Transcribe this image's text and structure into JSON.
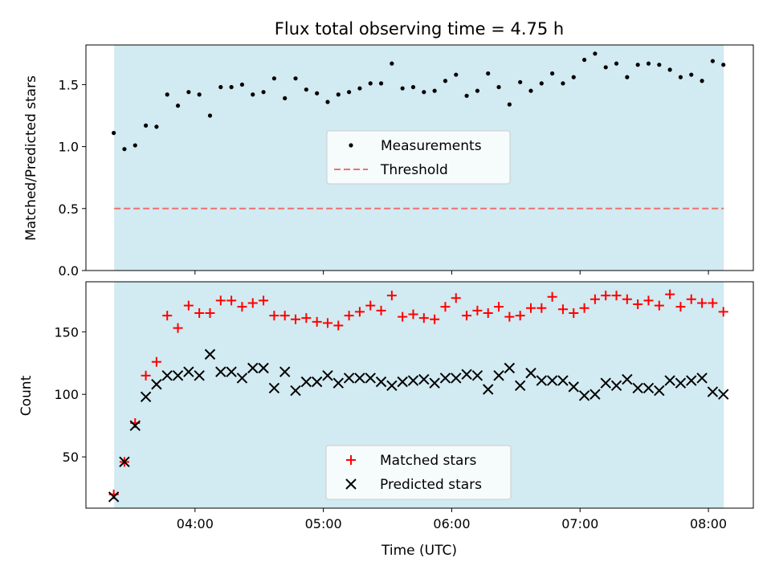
{
  "chart_data": [
    {
      "type": "scatter",
      "title": "Flux total observing time = 4.75 h",
      "ylabel": "Matched/Predicted stars",
      "xlabel": "",
      "ylim": [
        0,
        1.82
      ],
      "yticks": [
        "0.0",
        "0.5",
        "1.0",
        "1.5"
      ],
      "ytick_values": [
        0.0,
        0.5,
        1.0,
        1.5
      ],
      "xlim_hours": [
        3.15,
        8.35
      ],
      "shaded_range_hours": [
        3.37,
        8.12
      ],
      "legend": {
        "placement": "center",
        "entries": [
          "Measurements",
          "Threshold"
        ]
      },
      "threshold": {
        "name": "Threshold",
        "value": 0.5,
        "color": "#f07070",
        "style": "dashed"
      },
      "series": [
        {
          "name": "Measurements",
          "color": "#000000",
          "marker": "dot",
          "x": [
            "03:22",
            "03:27",
            "03:32",
            "03:37",
            "03:42",
            "03:47",
            "03:52",
            "03:57",
            "04:02",
            "04:07",
            "04:12",
            "04:17",
            "04:22",
            "04:27",
            "04:32",
            "04:37",
            "04:42",
            "04:47",
            "04:52",
            "04:57",
            "05:02",
            "05:07",
            "05:12",
            "05:17",
            "05:22",
            "05:27",
            "05:32",
            "05:37",
            "05:42",
            "05:47",
            "05:52",
            "05:57",
            "06:02",
            "06:07",
            "06:12",
            "06:17",
            "06:22",
            "06:27",
            "06:32",
            "06:37",
            "06:42",
            "06:47",
            "06:52",
            "06:57",
            "07:02",
            "07:07",
            "07:12",
            "07:17",
            "07:22",
            "07:27",
            "07:32",
            "07:37",
            "07:42",
            "07:47",
            "07:52",
            "07:57",
            "08:02",
            "08:07"
          ],
          "y": [
            1.11,
            0.98,
            1.01,
            1.17,
            1.16,
            1.42,
            1.33,
            1.44,
            1.42,
            1.25,
            1.48,
            1.48,
            1.5,
            1.42,
            1.44,
            1.55,
            1.39,
            1.55,
            1.46,
            1.43,
            1.36,
            1.42,
            1.44,
            1.47,
            1.51,
            1.51,
            1.67,
            1.47,
            1.48,
            1.44,
            1.45,
            1.53,
            1.58,
            1.41,
            1.45,
            1.59,
            1.48,
            1.34,
            1.52,
            1.45,
            1.51,
            1.59,
            1.51,
            1.56,
            1.7,
            1.75,
            1.64,
            1.67,
            1.56,
            1.66,
            1.67,
            1.66,
            1.62,
            1.56,
            1.58,
            1.53,
            1.69,
            1.66
          ]
        }
      ]
    },
    {
      "type": "scatter",
      "title": "",
      "ylabel": "Count",
      "xlabel": "Time (UTC)",
      "ylim": [
        9,
        190
      ],
      "yticks": [
        "50",
        "100",
        "150"
      ],
      "ytick_values": [
        50,
        100,
        150
      ],
      "xticks": [
        "04:00",
        "05:00",
        "06:00",
        "07:00",
        "08:00"
      ],
      "xtick_values_hours": [
        4,
        5,
        6,
        7,
        8
      ],
      "xlim_hours": [
        3.15,
        8.35
      ],
      "shaded_range_hours": [
        3.37,
        8.12
      ],
      "legend": {
        "placement": "lower center",
        "entries": [
          "Matched stars",
          "Predicted stars"
        ]
      },
      "series": [
        {
          "name": "Matched stars",
          "color": "#ff0000",
          "marker": "plus",
          "x": [
            "03:22",
            "03:27",
            "03:32",
            "03:37",
            "03:42",
            "03:47",
            "03:52",
            "03:57",
            "04:02",
            "04:07",
            "04:12",
            "04:17",
            "04:22",
            "04:27",
            "04:32",
            "04:37",
            "04:42",
            "04:47",
            "04:52",
            "04:57",
            "05:02",
            "05:07",
            "05:12",
            "05:17",
            "05:22",
            "05:27",
            "05:32",
            "05:37",
            "05:42",
            "05:47",
            "05:52",
            "05:57",
            "06:02",
            "06:07",
            "06:12",
            "06:17",
            "06:22",
            "06:27",
            "06:32",
            "06:37",
            "06:42",
            "06:47",
            "06:52",
            "06:57",
            "07:02",
            "07:07",
            "07:12",
            "07:17",
            "07:22",
            "07:27",
            "07:32",
            "07:37",
            "07:42",
            "07:47",
            "07:52",
            "07:57",
            "08:02",
            "08:07"
          ],
          "y": [
            20,
            46,
            77,
            115,
            126,
            163,
            153,
            171,
            165,
            165,
            175,
            175,
            170,
            173,
            175,
            163,
            163,
            160,
            161,
            158,
            157,
            155,
            163,
            166,
            171,
            167,
            179,
            162,
            164,
            161,
            160,
            170,
            177,
            163,
            167,
            165,
            170,
            162,
            163,
            169,
            169,
            178,
            168,
            165,
            169,
            176,
            179,
            179,
            176,
            172,
            175,
            171,
            180,
            170,
            176,
            173,
            173,
            166
          ]
        },
        {
          "name": "Predicted stars",
          "color": "#000000",
          "marker": "x",
          "x": [
            "03:22",
            "03:27",
            "03:32",
            "03:37",
            "03:42",
            "03:47",
            "03:52",
            "03:57",
            "04:02",
            "04:07",
            "04:12",
            "04:17",
            "04:22",
            "04:27",
            "04:32",
            "04:37",
            "04:42",
            "04:47",
            "04:52",
            "04:57",
            "05:02",
            "05:07",
            "05:12",
            "05:17",
            "05:22",
            "05:27",
            "05:32",
            "05:37",
            "05:42",
            "05:47",
            "05:52",
            "05:57",
            "06:02",
            "06:07",
            "06:12",
            "06:17",
            "06:22",
            "06:27",
            "06:32",
            "06:37",
            "06:42",
            "06:47",
            "06:52",
            "06:57",
            "07:02",
            "07:07",
            "07:12",
            "07:17",
            "07:22",
            "07:27",
            "07:32",
            "07:37",
            "07:42",
            "07:47",
            "07:52",
            "07:57",
            "08:02",
            "08:07"
          ],
          "y": [
            18,
            46,
            75,
            98,
            108,
            115,
            115,
            118,
            115,
            132,
            118,
            118,
            113,
            121,
            121,
            105,
            118,
            103,
            110,
            110,
            115,
            109,
            113,
            113,
            113,
            110,
            107,
            110,
            111,
            112,
            109,
            113,
            113,
            116,
            115,
            104,
            115,
            121,
            107,
            117,
            111,
            111,
            111,
            106,
            99,
            100,
            109,
            107,
            112,
            105,
            105,
            103,
            111,
            109,
            111,
            113,
            102,
            100
          ]
        }
      ]
    }
  ]
}
